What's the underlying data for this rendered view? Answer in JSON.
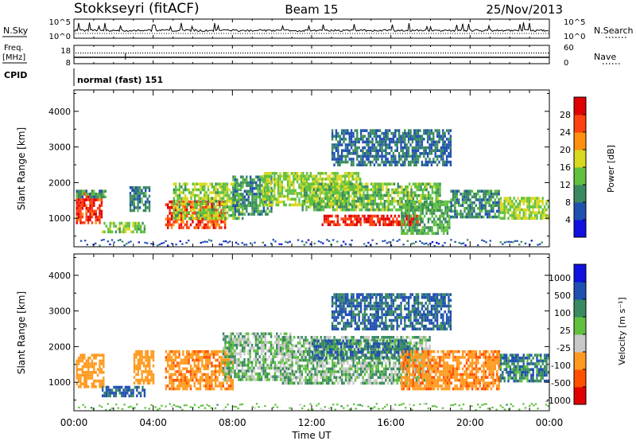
{
  "header": {
    "station": "Stokkseyri (fitACF)",
    "beam": "Beam 15",
    "date": "25/Nov/2013"
  },
  "top_panels": {
    "nsky_label": "N.Sky",
    "nsky_ticks": [
      "10^5",
      "10^0"
    ],
    "nsearch_label": "N.Search",
    "freq_label": "Freq.",
    "freq_unit": "[MHz]",
    "freq_ticks": [
      "18",
      "8"
    ],
    "nave_label": "Nave",
    "nave_ticks": [
      "60",
      "0"
    ],
    "cpid_label": "CPID",
    "cpid_text": "normal (fast) 151"
  },
  "x_axis": {
    "label": "Time UT",
    "ticks": [
      "00:00",
      "04:00",
      "08:00",
      "12:00",
      "16:00",
      "20:00",
      "00:00"
    ]
  },
  "colors": {
    "power": [
      "#1010e0",
      "#2050b0",
      "#3a8a60",
      "#60c040",
      "#d8d820",
      "#ff9010",
      "#ff4010",
      "#e00000"
    ],
    "velocity": [
      "#e00000",
      "#ff5000",
      "#ff9a20",
      "#c8c8c8",
      "#60c040",
      "#3a8a60",
      "#2050b0",
      "#1010e0"
    ]
  },
  "chart_data": [
    {
      "type": "heatmap",
      "title": "Power",
      "ylabel": "Slant Range [km]",
      "ylim": [
        200,
        4600
      ],
      "xlim": [
        0,
        24
      ],
      "y_ticks": [
        1000,
        2000,
        3000,
        4000
      ],
      "colorbar": {
        "label": "Power [dB]",
        "ticks": [
          4,
          8,
          12,
          16,
          20,
          24,
          28
        ],
        "range": [
          0,
          32
        ]
      },
      "regions": [
        {
          "t": [
            0.1,
            1.4
          ],
          "r": [
            850,
            1800
          ],
          "level": 27
        },
        {
          "t": [
            0.1,
            1.6
          ],
          "r": [
            1600,
            1800
          ],
          "level": 11
        },
        {
          "t": [
            1.4,
            3.6
          ],
          "r": [
            650,
            900
          ],
          "level": 14
        },
        {
          "t": [
            2.8,
            3.8
          ],
          "r": [
            1200,
            1900
          ],
          "level": 9
        },
        {
          "t": [
            4.6,
            7.6
          ],
          "r": [
            750,
            1500
          ],
          "level": 26
        },
        {
          "t": [
            5.0,
            8.5
          ],
          "r": [
            1000,
            2000
          ],
          "level": 15
        },
        {
          "t": [
            8.0,
            10.0
          ],
          "r": [
            1100,
            2200
          ],
          "level": 10
        },
        {
          "t": [
            9.5,
            14.5
          ],
          "r": [
            1400,
            2300
          ],
          "level": 16
        },
        {
          "t": [
            11.5,
            18.5
          ],
          "r": [
            1200,
            2000
          ],
          "level": 14
        },
        {
          "t": [
            12.5,
            17.5
          ],
          "r": [
            800,
            1100
          ],
          "level": 28
        },
        {
          "t": [
            16.5,
            19.0
          ],
          "r": [
            600,
            1500
          ],
          "level": 12
        },
        {
          "t": [
            19.0,
            21.5
          ],
          "r": [
            1000,
            1800
          ],
          "level": 10
        },
        {
          "t": [
            21.5,
            24.0
          ],
          "r": [
            1000,
            1600
          ],
          "level": 16
        },
        {
          "t": [
            13.0,
            19.0
          ],
          "r": [
            2500,
            3500
          ],
          "level": 8
        }
      ]
    },
    {
      "type": "heatmap",
      "title": "Velocity",
      "ylabel": "Slant Range [km]",
      "ylim": [
        200,
        4600
      ],
      "xlim": [
        0,
        24
      ],
      "y_ticks": [
        1000,
        2000,
        3000,
        4000
      ],
      "colorbar": {
        "label": "Velocity [m s⁻¹]",
        "ticks": [
          "1000",
          "500",
          "100",
          "25",
          "-25",
          "-100",
          "-500",
          "-1000"
        ]
      },
      "regions": [
        {
          "t": [
            0.1,
            1.5
          ],
          "r": [
            900,
            1800
          ],
          "level": -400
        },
        {
          "t": [
            1.4,
            3.6
          ],
          "r": [
            650,
            900
          ],
          "level": 150
        },
        {
          "t": [
            3.0,
            4.0
          ],
          "r": [
            1000,
            1900
          ],
          "level": -300
        },
        {
          "t": [
            4.6,
            8.0
          ],
          "r": [
            800,
            1900
          ],
          "level": -450
        },
        {
          "t": [
            7.5,
            11.0
          ],
          "r": [
            1100,
            2400
          ],
          "level": 0
        },
        {
          "t": [
            10.5,
            18.0
          ],
          "r": [
            1000,
            2300
          ],
          "level": 0
        },
        {
          "t": [
            12.0,
            17.0
          ],
          "r": [
            1700,
            2200
          ],
          "level": 100
        },
        {
          "t": [
            16.5,
            21.5
          ],
          "r": [
            800,
            1900
          ],
          "level": -450
        },
        {
          "t": [
            21.5,
            24.0
          ],
          "r": [
            1000,
            1800
          ],
          "level": 80
        },
        {
          "t": [
            13.0,
            19.0
          ],
          "r": [
            2500,
            3500
          ],
          "level": 120
        }
      ]
    }
  ]
}
